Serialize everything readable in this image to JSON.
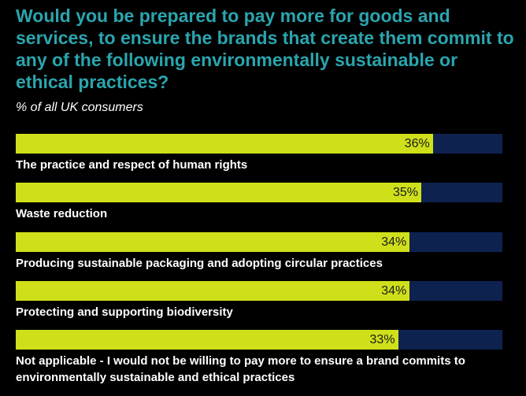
{
  "chart_data": {
    "type": "bar",
    "orientation": "horizontal",
    "title": "Would you be prepared to pay more for goods and services, to ensure the brands that create them commit to any of the following environmentally sustainable or ethical practices?",
    "subtitle": "% of all UK consumers",
    "categories": [
      "The practice and respect of human rights",
      "Waste reduction",
      "Producing sustainable packaging and adopting circular practices",
      "Protecting and supporting biodiversity",
      "Not applicable - I would not be willing to pay more to ensure a brand commits to environmentally sustainable and ethical practices"
    ],
    "values": [
      36,
      35,
      34,
      34,
      33
    ],
    "value_labels": [
      "36%",
      "35%",
      "34%",
      "34%",
      "33%"
    ],
    "color": "#cfe01a",
    "track_color": "#0e2250",
    "xlim": [
      0,
      42
    ]
  }
}
